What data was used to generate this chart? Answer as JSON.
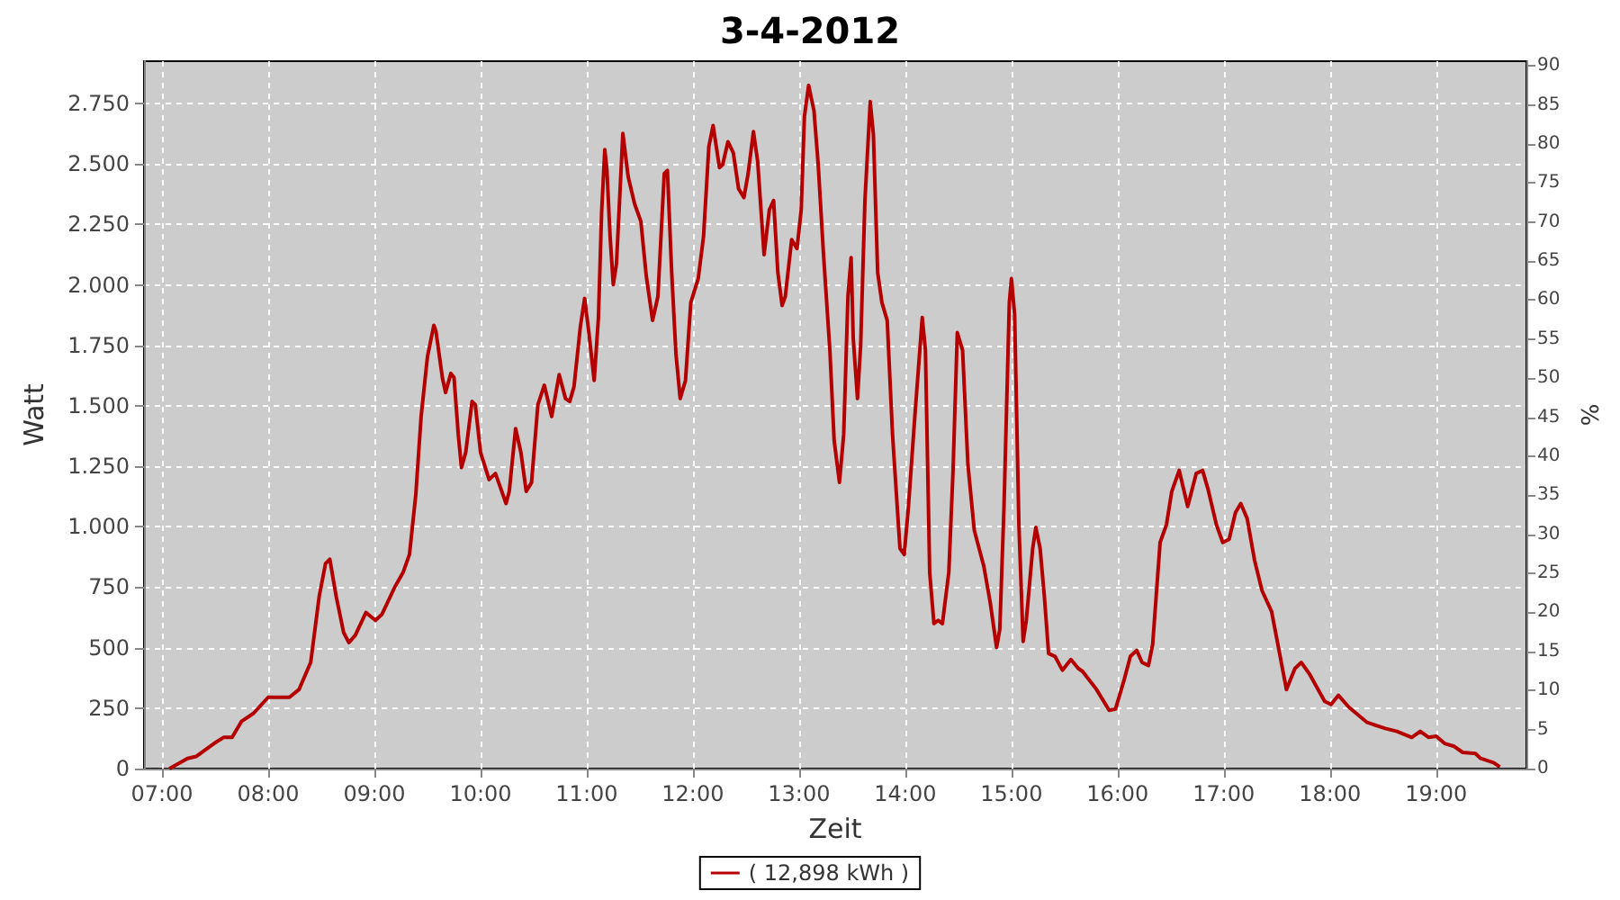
{
  "chart_data": {
    "type": "line",
    "title": "3-4-2012",
    "xlabel": "Zeit",
    "ylabel": "Watt",
    "y2label": "%",
    "xlim": [
      6.83,
      19.85
    ],
    "xticks": [
      {
        "value": 7,
        "label": "07:00"
      },
      {
        "value": 8,
        "label": "08:00"
      },
      {
        "value": 9,
        "label": "09:00"
      },
      {
        "value": 10,
        "label": "10:00"
      },
      {
        "value": 11,
        "label": "11:00"
      },
      {
        "value": 12,
        "label": "12:00"
      },
      {
        "value": 13,
        "label": "13:00"
      },
      {
        "value": 14,
        "label": "14:00"
      },
      {
        "value": 15,
        "label": "15:00"
      },
      {
        "value": 16,
        "label": "16:00"
      },
      {
        "value": 17,
        "label": "17:00"
      },
      {
        "value": 18,
        "label": "18:00"
      },
      {
        "value": 19,
        "label": "19:00"
      }
    ],
    "ylim": [
      0,
      2925
    ],
    "yticks": [
      0,
      250,
      500,
      750,
      {
        "value": 1000,
        "label": "1.000"
      },
      {
        "value": 1250,
        "label": "1.250"
      },
      {
        "value": 1500,
        "label": "1.500"
      },
      {
        "value": 1750,
        "label": "1.750"
      },
      {
        "value": 2000,
        "label": "2.000"
      },
      {
        "value": 2250,
        "label": "2.250"
      },
      {
        "value": 2500,
        "label": "2.500"
      },
      {
        "value": 2750,
        "label": "2.750"
      }
    ],
    "y2lim": [
      0,
      90.6
    ],
    "y2ticks": [
      0,
      5,
      10,
      15,
      20,
      25,
      30,
      35,
      40,
      45,
      50,
      55,
      60,
      65,
      70,
      75,
      80,
      85,
      90
    ],
    "grid": true,
    "legend": "bottom",
    "series": [
      {
        "name": "( 12,898 kWh )",
        "color": "#b40000",
        "x": [
          7.07,
          7.24,
          7.32,
          7.49,
          7.58,
          7.66,
          7.75,
          7.86,
          8.0,
          8.2,
          8.29,
          8.4,
          8.48,
          8.54,
          8.58,
          8.64,
          8.71,
          8.76,
          8.82,
          8.92,
          9.01,
          9.07,
          9.19,
          9.27,
          9.33,
          9.39,
          9.44,
          9.5,
          9.56,
          9.58,
          9.64,
          9.67,
          9.72,
          9.75,
          9.79,
          9.82,
          9.86,
          9.92,
          9.95,
          10.0,
          10.08,
          10.14,
          10.18,
          10.24,
          10.27,
          10.33,
          10.38,
          10.43,
          10.48,
          10.54,
          10.6,
          10.65,
          10.67,
          10.74,
          10.8,
          10.84,
          10.88,
          10.94,
          10.98,
          11.02,
          11.07,
          11.11,
          11.14,
          11.17,
          11.19,
          11.22,
          11.25,
          11.28,
          11.34,
          11.39,
          11.45,
          11.51,
          11.56,
          11.62,
          11.67,
          11.73,
          11.76,
          11.8,
          11.84,
          11.88,
          11.93,
          11.98,
          12.05,
          12.1,
          12.15,
          12.19,
          12.25,
          12.28,
          12.33,
          12.38,
          12.43,
          12.48,
          12.52,
          12.57,
          12.61,
          12.67,
          12.72,
          12.76,
          12.8,
          12.84,
          12.87,
          12.93,
          12.98,
          13.02,
          13.05,
          13.09,
          13.14,
          13.18,
          13.23,
          13.29,
          13.33,
          13.38,
          13.42,
          13.46,
          13.49,
          13.51,
          13.55,
          13.58,
          13.62,
          13.67,
          13.7,
          13.74,
          13.78,
          13.83,
          13.88,
          13.95,
          13.99,
          14.03,
          14.09,
          14.16,
          14.19,
          14.23,
          14.27,
          14.31,
          14.35,
          14.41,
          14.45,
          14.49,
          14.54,
          14.59,
          14.65,
          14.74,
          14.8,
          14.86,
          14.89,
          14.93,
          14.98,
          15.0,
          15.03,
          15.07,
          15.11,
          15.14,
          15.2,
          15.23,
          15.27,
          15.31,
          15.35,
          15.41,
          15.48,
          15.56,
          15.63,
          15.67,
          15.8,
          15.92,
          15.98,
          16.06,
          16.12,
          16.18,
          16.23,
          16.29,
          16.33,
          16.4,
          16.46,
          16.51,
          16.58,
          16.66,
          16.74,
          16.8,
          16.85,
          16.93,
          16.99,
          17.05,
          17.11,
          17.16,
          17.22,
          17.29,
          17.36,
          17.45,
          17.52,
          17.59,
          17.67,
          17.73,
          17.81,
          17.95,
          18.01,
          18.08,
          18.18,
          18.35,
          18.52,
          18.63,
          18.77,
          18.85,
          18.93,
          19.0,
          19.08,
          19.17,
          19.25,
          19.37,
          19.42,
          19.54,
          19.6
        ],
        "values": [
          0,
          42,
          50,
          104,
          129,
          129,
          196,
          228,
          295,
          295,
          327,
          439,
          712,
          848,
          866,
          712,
          563,
          521,
          551,
          645,
          613,
          637,
          749,
          811,
          885,
          1133,
          1456,
          1704,
          1833,
          1808,
          1617,
          1555,
          1634,
          1617,
          1381,
          1245,
          1307,
          1518,
          1505,
          1307,
          1195,
          1220,
          1171,
          1096,
          1146,
          1406,
          1307,
          1146,
          1183,
          1505,
          1585,
          1493,
          1456,
          1629,
          1530,
          1518,
          1580,
          1828,
          1944,
          1803,
          1605,
          1865,
          2299,
          2559,
          2473,
          2200,
          2001,
          2088,
          2626,
          2448,
          2336,
          2262,
          2039,
          1853,
          1952,
          2460,
          2473,
          2051,
          1716,
          1530,
          1605,
          1927,
          2026,
          2200,
          2572,
          2659,
          2485,
          2497,
          2592,
          2547,
          2398,
          2361,
          2460,
          2634,
          2510,
          2125,
          2311,
          2349,
          2051,
          1915,
          1952,
          2187,
          2150,
          2311,
          2696,
          2825,
          2721,
          2497,
          2125,
          1729,
          1357,
          1183,
          1381,
          1952,
          2113,
          1778,
          1530,
          1753,
          2349,
          2758,
          2621,
          2051,
          1927,
          1853,
          1381,
          910,
          885,
          1084,
          1456,
          1865,
          1729,
          811,
          600,
          613,
          600,
          811,
          1233,
          1803,
          1729,
          1257,
          985,
          836,
          687,
          501,
          575,
          1084,
          1927,
          2026,
          1877,
          1009,
          526,
          613,
          910,
          997,
          910,
          712,
          476,
          464,
          407,
          451,
          414,
          402,
          328,
          241,
          246,
          365,
          464,
          489,
          439,
          426,
          513,
          935,
          1009,
          1146,
          1233,
          1084,
          1220,
          1233,
          1158,
          1009,
          935,
          948,
          1059,
          1096,
          1034,
          861,
          736,
          650,
          489,
          327,
          414,
          439,
          389,
          278,
          265,
          303,
          253,
          191,
          166,
          154,
          129,
          154,
          129,
          134,
          104,
          92,
          67,
          62,
          42,
          25,
          7
        ]
      }
    ]
  }
}
